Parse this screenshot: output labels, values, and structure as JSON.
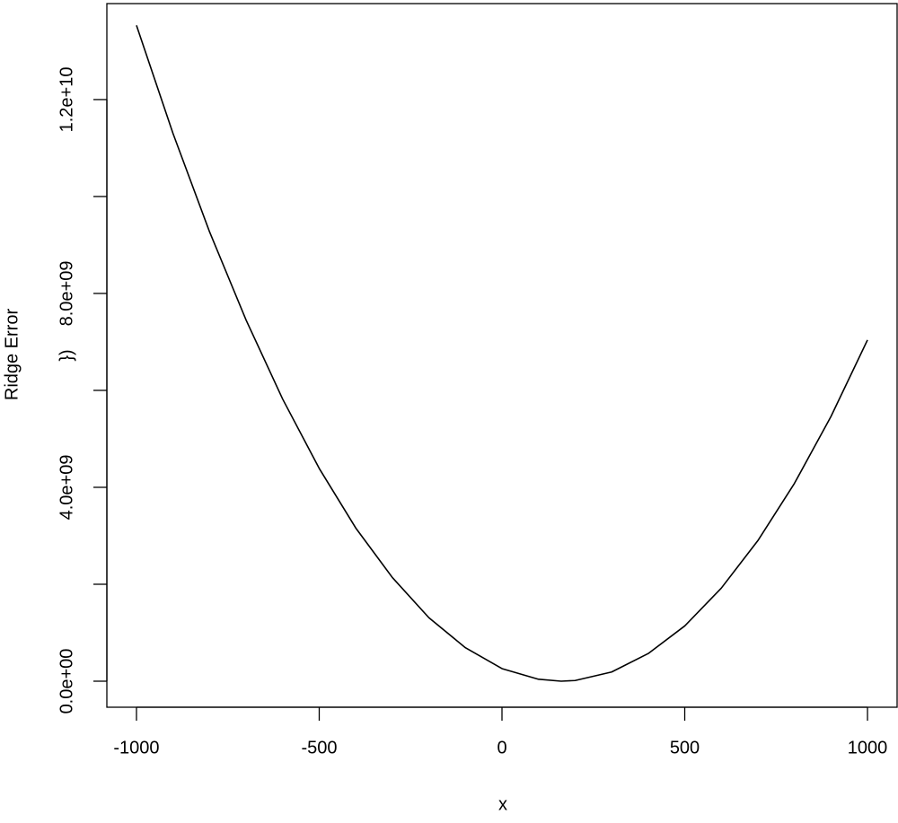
{
  "chart_data": {
    "type": "line",
    "xlabel": "x",
    "ylabel": "Ridge Error",
    "annotation": "})",
    "x": [
      -1000,
      -900,
      -800,
      -700,
      -600,
      -500,
      -400,
      -300,
      -200,
      -100,
      0,
      100,
      162,
      200,
      300,
      400,
      500,
      600,
      700,
      800,
      900,
      1000
    ],
    "series": [
      {
        "name": "Ridge Error",
        "color": "#000000",
        "values": [
          13530000000,
          11300000000,
          9270000000,
          7450000000,
          5820000000,
          4390000000,
          3160000000,
          2140000000,
          1310000000,
          690000000,
          260000000,
          40000000,
          0,
          14000000,
          190000000,
          570000000,
          1140000000,
          1920000000,
          2900000000,
          4080000000,
          5460000000,
          7040000000
        ]
      }
    ],
    "xlim": [
      -1081,
      1081
    ],
    "xticks": [
      -1000,
      -500,
      0,
      500,
      1000
    ],
    "ylim": [
      -537000000,
      13980000000
    ],
    "yticks": [
      {
        "value": 0,
        "label": "0.0e+00"
      },
      {
        "value": 2000000000,
        "label": null
      },
      {
        "value": 4000000000,
        "label": "4.0e+09"
      },
      {
        "value": 6000000000,
        "label": null
      },
      {
        "value": 8000000000,
        "label": "8.0e+09"
      },
      {
        "value": 10000000000,
        "label": null
      },
      {
        "value": 12000000000,
        "label": "1.2e+10"
      }
    ],
    "grid": false
  }
}
